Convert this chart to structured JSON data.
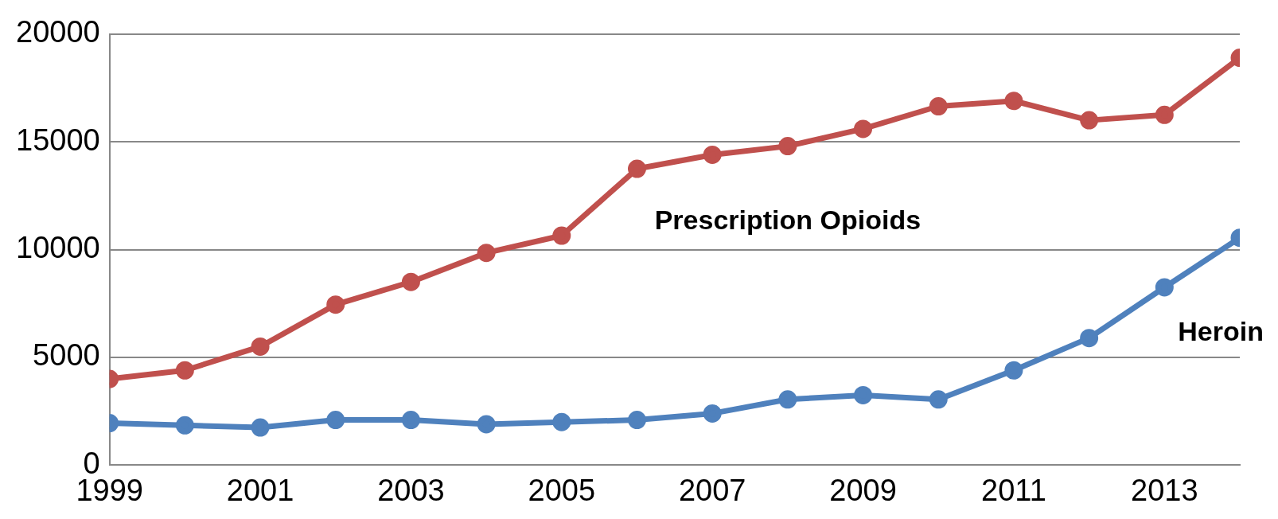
{
  "chart_data": {
    "type": "line",
    "x": [
      1999,
      2000,
      2001,
      2002,
      2003,
      2004,
      2005,
      2006,
      2007,
      2008,
      2009,
      2010,
      2011,
      2012,
      2013,
      2014
    ],
    "series": [
      {
        "name": "Prescription Opioids",
        "color": "#c0504d",
        "values": [
          4000,
          4400,
          5500,
          7450,
          8500,
          9850,
          10650,
          13750,
          14400,
          14800,
          15600,
          16650,
          16900,
          16000,
          16250,
          18900
        ]
      },
      {
        "name": "Heroin",
        "color": "#4f81bd",
        "values": [
          1950,
          1850,
          1750,
          2100,
          2100,
          1900,
          2000,
          2100,
          2400,
          3050,
          3250,
          3050,
          4400,
          5900,
          8250,
          10550
        ]
      }
    ],
    "xlim": [
      1999,
      2014
    ],
    "xticks": [
      1999,
      2001,
      2003,
      2005,
      2007,
      2009,
      2011,
      2013
    ],
    "ylim": [
      0,
      20000
    ],
    "yticks": [
      0,
      5000,
      10000,
      15000,
      20000
    ],
    "grid": "y",
    "legend": false,
    "marker": "circle",
    "line_style": "solid"
  }
}
